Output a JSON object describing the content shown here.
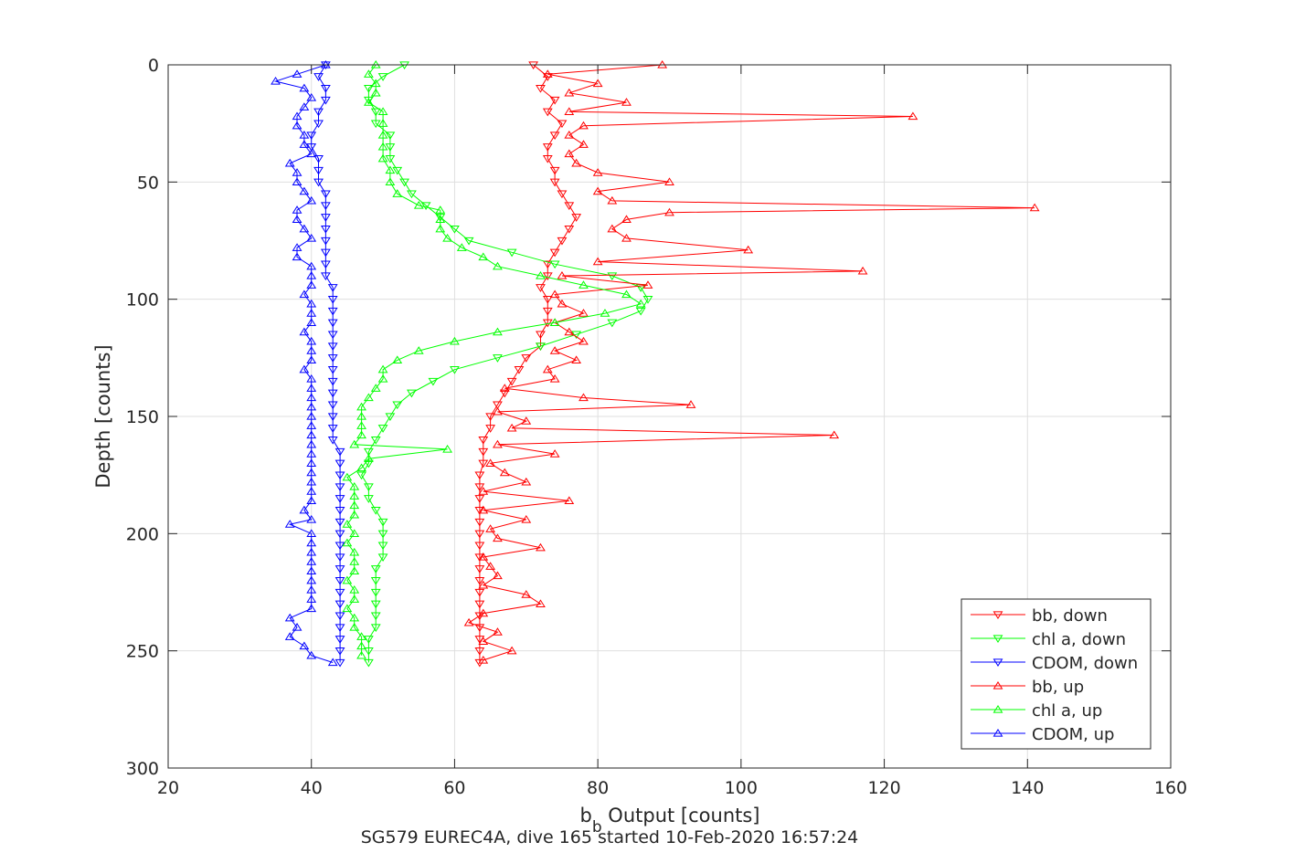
{
  "chart_data": {
    "type": "line",
    "title": "SG579 EUREC4A, dive 165 started 10-Feb-2020 16:57:24",
    "xlabel": {
      "main": "b",
      "sub": "b",
      "rest": " Output [counts]"
    },
    "ylabel": "Depth [counts]",
    "xlim": [
      20,
      160
    ],
    "ylim": [
      0,
      300
    ],
    "y_reversed": true,
    "grid": true,
    "legend_position": "bottom-right",
    "xticks": [
      "20",
      "40",
      "60",
      "80",
      "100",
      "120",
      "140",
      "160"
    ],
    "yticks": [
      "0",
      "50",
      "100",
      "150",
      "200",
      "250",
      "300"
    ],
    "colors": {
      "bb": "#ff0000",
      "chl": "#00ff00",
      "cdom": "#0000ff"
    },
    "series": [
      {
        "name": "bb, down",
        "color": "#ff0000",
        "marker": "triangle-down",
        "depth": [
          0,
          5,
          10,
          15,
          20,
          25,
          30,
          35,
          40,
          45,
          50,
          55,
          60,
          65,
          70,
          75,
          80,
          85,
          90,
          95,
          100,
          105,
          110,
          115,
          120,
          125,
          130,
          135,
          140,
          145,
          150,
          155,
          160,
          165,
          170,
          175,
          180,
          185,
          190,
          195,
          200,
          205,
          210,
          215,
          220,
          225,
          230,
          235,
          240,
          245,
          250,
          255
        ],
        "values": [
          71,
          73,
          72,
          74,
          73,
          75,
          74,
          73,
          73,
          74,
          74,
          75,
          76,
          77,
          76,
          75,
          74,
          73,
          73,
          72,
          73,
          73,
          73,
          72,
          72,
          70,
          69,
          68,
          67,
          66,
          65,
          65,
          64,
          64,
          64,
          63.5,
          63.5,
          63.5,
          63.5,
          63.5,
          63.5,
          63.5,
          63.5,
          63.5,
          63.5,
          63.5,
          63.5,
          63.5,
          63.5,
          63.5,
          63.5,
          63.5
        ]
      },
      {
        "name": "chl a, down",
        "color": "#00ff00",
        "marker": "triangle-down",
        "depth": [
          0,
          5,
          10,
          15,
          20,
          25,
          30,
          35,
          40,
          45,
          50,
          55,
          60,
          65,
          70,
          75,
          80,
          85,
          90,
          95,
          100,
          105,
          110,
          115,
          120,
          125,
          130,
          135,
          140,
          145,
          150,
          155,
          160,
          165,
          170,
          175,
          180,
          185,
          190,
          195,
          200,
          205,
          210,
          215,
          220,
          225,
          230,
          235,
          240,
          245,
          250,
          255
        ],
        "values": [
          53,
          50,
          48,
          48,
          49,
          49,
          51,
          51,
          51,
          52,
          53,
          54,
          56,
          58,
          60,
          62,
          68,
          74,
          82,
          86,
          87,
          86,
          82,
          77,
          72,
          66,
          60,
          57,
          54,
          52,
          51,
          50,
          49,
          48,
          48,
          47,
          48,
          48,
          49,
          50,
          50,
          50,
          50,
          49,
          49,
          49,
          49,
          49,
          49,
          48,
          48,
          48
        ]
      },
      {
        "name": "CDOM, down",
        "color": "#0000ff",
        "marker": "triangle-down",
        "depth": [
          0,
          5,
          10,
          15,
          20,
          25,
          30,
          35,
          40,
          45,
          50,
          55,
          60,
          65,
          70,
          75,
          80,
          85,
          90,
          95,
          100,
          105,
          110,
          115,
          120,
          125,
          130,
          135,
          140,
          145,
          150,
          155,
          160,
          165,
          170,
          175,
          180,
          185,
          190,
          195,
          200,
          205,
          210,
          215,
          220,
          225,
          230,
          235,
          240,
          245,
          250,
          255
        ],
        "values": [
          42,
          41,
          42,
          42,
          41,
          41,
          40,
          40,
          41,
          41,
          41,
          42,
          42,
          42,
          42,
          42,
          42,
          42,
          42,
          43,
          43,
          43,
          43,
          43,
          43,
          43,
          43,
          43,
          43,
          43,
          43,
          43,
          43,
          44,
          44,
          44,
          44,
          44,
          44,
          44,
          44,
          44,
          44,
          44,
          44,
          44,
          44,
          44,
          44,
          44,
          44,
          44
        ]
      },
      {
        "name": "bb, up",
        "color": "#ff0000",
        "marker": "triangle-up",
        "depth": [
          0,
          4,
          8,
          12,
          16,
          20,
          22,
          26,
          30,
          34,
          38,
          42,
          46,
          50,
          54,
          58,
          61,
          63,
          66,
          70,
          74,
          79,
          84,
          88,
          90,
          94,
          98,
          102,
          106,
          110,
          114,
          118,
          122,
          126,
          130,
          134,
          138,
          142,
          145,
          148,
          152,
          155,
          158,
          162,
          166,
          170,
          174,
          178,
          182,
          186,
          190,
          194,
          198,
          202,
          206,
          210,
          214,
          218,
          222,
          226,
          230,
          234,
          238,
          242,
          246,
          250,
          254
        ],
        "values": [
          89,
          73,
          80,
          76,
          84,
          76,
          124,
          78,
          76,
          78,
          76,
          77,
          80,
          90,
          80,
          82,
          141,
          90,
          84,
          82,
          84,
          101,
          80,
          117,
          75,
          87,
          74,
          75,
          78,
          74,
          76,
          78,
          74,
          77,
          73,
          74,
          67,
          78,
          93,
          66,
          70,
          68,
          113,
          66,
          74,
          65,
          67,
          70,
          64,
          76,
          64,
          70,
          65,
          66,
          72,
          64,
          65,
          66,
          64,
          70,
          72,
          64,
          62,
          66,
          64,
          68,
          64
        ]
      },
      {
        "name": "chl a, up",
        "color": "#00ff00",
        "marker": "triangle-up",
        "depth": [
          0,
          4,
          8,
          12,
          16,
          20,
          25,
          30,
          35,
          40,
          45,
          50,
          55,
          60,
          62,
          66,
          70,
          74,
          78,
          82,
          86,
          90,
          94,
          98,
          102,
          106,
          110,
          114,
          118,
          122,
          126,
          130,
          134,
          138,
          142,
          146,
          150,
          154,
          158,
          162,
          164,
          168,
          172,
          176,
          180,
          184,
          188,
          192,
          196,
          200,
          204,
          208,
          212,
          216,
          220,
          224,
          228,
          232,
          236,
          240,
          244,
          248,
          252
        ],
        "values": [
          49,
          48,
          49,
          49,
          48,
          50,
          50,
          50,
          50,
          50,
          51,
          51,
          52,
          55,
          58,
          58,
          58,
          59,
          61,
          64,
          66,
          72,
          78,
          84,
          86,
          81,
          74,
          66,
          60,
          55,
          52,
          50,
          50,
          49,
          48,
          47,
          47,
          47,
          47,
          46,
          59,
          48,
          47,
          45,
          46,
          46,
          46,
          46,
          45,
          46,
          45,
          46,
          46,
          46,
          45,
          46,
          46,
          45,
          46,
          46,
          47,
          47,
          47
        ]
      },
      {
        "name": "CDOM, up",
        "color": "#0000ff",
        "marker": "triangle-up",
        "depth": [
          0,
          4,
          7,
          10,
          14,
          18,
          22,
          26,
          30,
          34,
          38,
          42,
          46,
          50,
          54,
          58,
          62,
          66,
          70,
          74,
          78,
          82,
          86,
          90,
          94,
          98,
          102,
          106,
          110,
          114,
          118,
          122,
          126,
          130,
          134,
          138,
          142,
          146,
          150,
          154,
          158,
          162,
          166,
          170,
          174,
          178,
          182,
          186,
          190,
          194,
          196,
          200,
          204,
          208,
          212,
          216,
          220,
          224,
          228,
          232,
          236,
          240,
          244,
          248,
          252,
          255
        ],
        "values": [
          42,
          38,
          35,
          39,
          40,
          39,
          38,
          38,
          39,
          39,
          40,
          37,
          38,
          38,
          39,
          40,
          38,
          38,
          39,
          40,
          38,
          38,
          40,
          40,
          40,
          39,
          40,
          40,
          40,
          39,
          40,
          40,
          40,
          39,
          40,
          40,
          40,
          40,
          40,
          40,
          40,
          40,
          40,
          40,
          40,
          40,
          40,
          40,
          39,
          40,
          37,
          40,
          40,
          40,
          40,
          40,
          40,
          40,
          40,
          40,
          37,
          38,
          37,
          39,
          40,
          43
        ]
      }
    ]
  }
}
